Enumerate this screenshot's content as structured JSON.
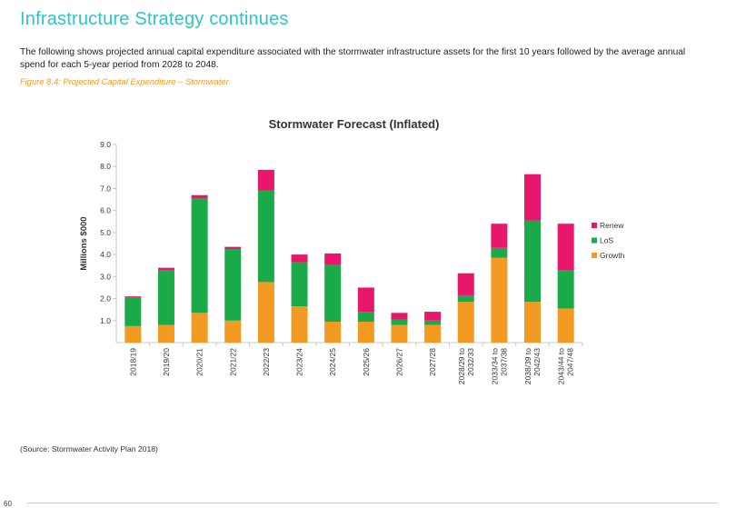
{
  "page": {
    "title": "Infrastructure Strategy continues",
    "intro": "The following shows projected annual capital expenditure associated with the stormwater infrastructure assets for the first 10 years followed by the average annual spend for each 5-year period from 2028 to 2048.",
    "figure_caption": "Figure 8.4: Projected Capital Expenditure – Stormwater",
    "source": "(Source:  Stormwater Activity Plan 2018)",
    "page_number": "60"
  },
  "chart_data": {
    "type": "bar",
    "stacked": true,
    "title": "Stormwater Forecast (Inflated)",
    "ylabel": "Millions  $000",
    "xlabel": "",
    "ylim": [
      0,
      9
    ],
    "yticks": [
      "1.0",
      "2.0",
      "3.0",
      "4.0",
      "5.0",
      "6.0",
      "7.0",
      "8.0",
      "9.0"
    ],
    "legend_position": "right",
    "categories": [
      [
        "2018/19"
      ],
      [
        "2019/20"
      ],
      [
        "2020/21"
      ],
      [
        "2021/22"
      ],
      [
        "2022/23"
      ],
      [
        "2023/24"
      ],
      [
        "2024/25"
      ],
      [
        "2025/26"
      ],
      [
        "2026/27"
      ],
      [
        "2027/28"
      ],
      [
        "2028/29 to",
        "2032/33"
      ],
      [
        "2033/34 to",
        "2037/38"
      ],
      [
        "2038/39 to",
        "2042/43"
      ],
      [
        "2043/44 to",
        "2047/48"
      ]
    ],
    "series": [
      {
        "name": "Growth",
        "color": "#f39a22",
        "values": [
          0.75,
          0.8,
          1.35,
          1.0,
          2.75,
          1.65,
          0.95,
          0.95,
          0.8,
          0.8,
          1.85,
          3.85,
          1.85,
          1.55
        ]
      },
      {
        "name": "LoS",
        "color": "#1aaa4a",
        "values": [
          1.3,
          2.5,
          5.2,
          3.25,
          4.15,
          2.0,
          2.6,
          0.45,
          0.25,
          0.2,
          0.3,
          0.45,
          3.7,
          1.75
        ]
      },
      {
        "name": "Renew",
        "color": "#e8176b",
        "values": [
          0.05,
          0.1,
          0.15,
          0.1,
          0.95,
          0.35,
          0.5,
          1.1,
          0.3,
          0.4,
          1.0,
          1.1,
          2.1,
          2.1
        ]
      }
    ],
    "legend_order": [
      "Renew",
      "LoS",
      "Growth"
    ]
  }
}
